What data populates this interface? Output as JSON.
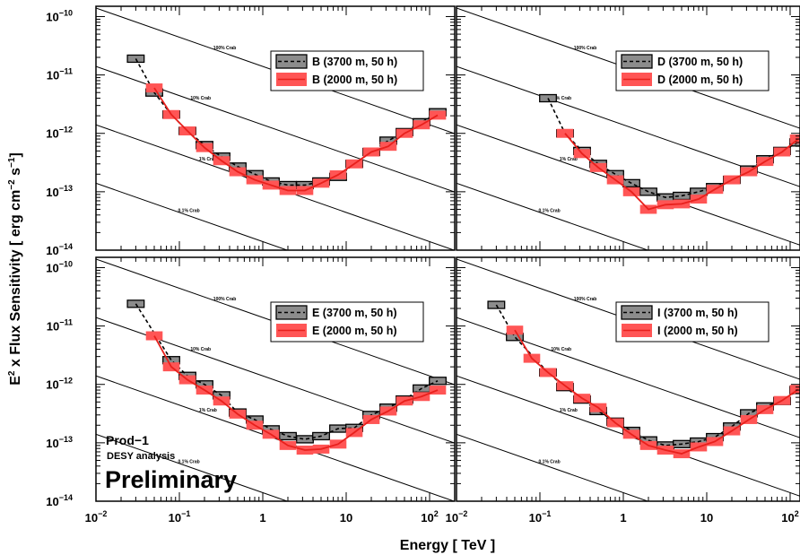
{
  "figure": {
    "ylabel_main": "E",
    "ylabel_sup": "2",
    "ylabel_rest": " x Flux Sensitivity [ erg cm",
    "ylabel_exp1": "−2",
    "ylabel_mid": " s",
    "ylabel_exp2": "−1",
    "ylabel_end": "]",
    "xlabel": "Energy [ TeV ]",
    "annotation_prod": "Prod−1",
    "annotation_analysis": "DESY analysis",
    "annotation_status": "Preliminary",
    "colors": {
      "high": "#8c8c8c",
      "low": "#ff5555",
      "low_line": "#e8201c"
    }
  },
  "chart_data": [
    {
      "type": "line",
      "panel": "top-left",
      "xlim": [
        0.01,
        200
      ],
      "ylim": [
        1e-14,
        1.5e-10
      ],
      "log_x": true,
      "log_y": true,
      "x_ticks": [
        {
          "v": 0.01,
          "base": "10",
          "exp": "−2"
        },
        {
          "v": 0.1,
          "base": "10",
          "exp": "−1"
        },
        {
          "v": 1,
          "base": "1",
          "exp": ""
        },
        {
          "v": 10,
          "base": "10",
          "exp": ""
        },
        {
          "v": 100,
          "base": "10",
          "exp": "2"
        }
      ],
      "y_ticks": [
        {
          "v": 1e-10,
          "base": "10",
          "exp": "−10"
        },
        {
          "v": 1e-11,
          "base": "10",
          "exp": "−11"
        },
        {
          "v": 1e-12,
          "base": "10",
          "exp": "−12"
        },
        {
          "v": 1e-13,
          "base": "10",
          "exp": "−13"
        },
        {
          "v": 1e-14,
          "base": "10",
          "exp": "−14"
        }
      ],
      "crab_labels": [
        "100% Crab",
        "10% Crab",
        "1% Crab",
        "0.1% Crab"
      ],
      "legend_placement": "top-right",
      "series": [
        {
          "name": "B (3700 m, 50 h)",
          "style": "high",
          "x": [
            0.03,
            0.05,
            0.08,
            0.125,
            0.2,
            0.32,
            0.5,
            0.8,
            1.25,
            2,
            3.2,
            5,
            8,
            12.5,
            20,
            32,
            50,
            80,
            125
          ],
          "y": [
            1.9e-11,
            5e-12,
            2.1e-12,
            1.1e-12,
            6.3e-13,
            4e-13,
            2.7e-13,
            2e-13,
            1.5e-13,
            1.3e-13,
            1.3e-13,
            1.5e-13,
            1.8e-13,
            3e-13,
            4.8e-13,
            7.5e-13,
            1.05e-12,
            1.55e-12,
            2.3e-12
          ]
        },
        {
          "name": "B (2000 m, 50 h)",
          "style": "low",
          "x": [
            0.05,
            0.08,
            0.125,
            0.2,
            0.32,
            0.5,
            0.8,
            1.25,
            2,
            3.2,
            5,
            8,
            12.5,
            20,
            32,
            50,
            80,
            125
          ],
          "y": [
            6e-12,
            2.1e-12,
            1.1e-12,
            5.7e-13,
            3.4e-13,
            2.2e-13,
            1.6e-13,
            1.3e-13,
            1.05e-13,
            1.05e-13,
            1.4e-13,
            1.95e-13,
            3e-13,
            4.8e-13,
            6e-13,
            1e-12,
            1.4e-12,
            2.05e-12
          ]
        }
      ]
    },
    {
      "type": "line",
      "panel": "top-right",
      "xlim": [
        0.01,
        200
      ],
      "ylim": [
        1e-14,
        1.5e-10
      ],
      "log_x": true,
      "log_y": true,
      "crab_labels": [
        "100% Crab",
        "10% Crab",
        "1% Crab",
        "0.1% Crab"
      ],
      "legend_placement": "top-right",
      "series": [
        {
          "name": "D (3700 m, 50 h)",
          "style": "high",
          "x": [
            0.125,
            0.2,
            0.32,
            0.5,
            0.8,
            1.25,
            2,
            3.2,
            5,
            8,
            12.5,
            20,
            32,
            50,
            80,
            125
          ],
          "y": [
            4e-12,
            1e-12,
            5e-13,
            3e-13,
            2e-13,
            1.4e-13,
            1e-13,
            8e-14,
            8.5e-14,
            1e-13,
            1.2e-13,
            1.6e-13,
            2.4e-13,
            3.6e-13,
            5e-13,
            7e-13
          ]
        },
        {
          "name": "D (2000 m, 50 h)",
          "style": "low",
          "x": [
            0.2,
            0.32,
            0.5,
            0.8,
            1.25,
            2,
            3.2,
            5,
            8,
            12.5,
            20,
            32,
            50,
            80,
            125
          ],
          "y": [
            1e-12,
            4.5e-13,
            2.6e-13,
            1.6e-13,
            1e-13,
            5e-14,
            6e-14,
            6.2e-14,
            7.5e-14,
            1.1e-13,
            1.6e-13,
            2.2e-13,
            3.3e-13,
            4.8e-13,
            8e-13
          ]
        }
      ]
    },
    {
      "type": "line",
      "panel": "bottom-left",
      "xlim": [
        0.01,
        200
      ],
      "ylim": [
        1e-14,
        1.5e-10
      ],
      "log_x": true,
      "log_y": true,
      "crab_labels": [
        "100% Crab",
        "10% Crab",
        "1% Crab",
        "0.1% Crab"
      ],
      "legend_placement": "top-right",
      "series": [
        {
          "name": "E (3700 m, 50 h)",
          "style": "high",
          "x": [
            0.03,
            0.08,
            0.125,
            0.2,
            0.32,
            0.5,
            0.8,
            1.25,
            2,
            3.2,
            5,
            8,
            12.5,
            20,
            32,
            50,
            80,
            125
          ],
          "y": [
            2.4e-11,
            2.6e-12,
            1.4e-12,
            1e-12,
            6.5e-13,
            3.3e-13,
            2.5e-13,
            1.7e-13,
            1.3e-13,
            1.15e-13,
            1.3e-13,
            1.75e-13,
            1.8e-13,
            3e-13,
            4e-13,
            5.5e-13,
            8.5e-13,
            1.15e-12
          ]
        },
        {
          "name": "E (2000 m, 50 h)",
          "style": "low",
          "x": [
            0.05,
            0.08,
            0.125,
            0.2,
            0.32,
            0.5,
            0.8,
            1.25,
            2,
            3.2,
            5,
            8,
            12.5,
            20,
            32,
            50,
            80,
            125
          ],
          "y": [
            6.8e-12,
            2e-12,
            1.2e-12,
            8e-13,
            5.2e-13,
            3.1e-13,
            2e-13,
            1.4e-13,
            9e-14,
            7.5e-14,
            7.8e-14,
            9.5e-14,
            1.5e-13,
            2.5e-13,
            3.5e-13,
            5.2e-13,
            6.2e-13,
            8e-13
          ]
        }
      ]
    },
    {
      "type": "line",
      "panel": "bottom-right",
      "xlim": [
        0.01,
        200
      ],
      "ylim": [
        1e-14,
        1.5e-10
      ],
      "log_x": true,
      "log_y": true,
      "crab_labels": [
        "100% Crab",
        "10% Crab",
        "1% Crab",
        "0.1% Crab"
      ],
      "legend_placement": "top-right",
      "series": [
        {
          "name": "I (3700 m, 50 h)",
          "style": "high",
          "x": [
            0.03,
            0.05,
            0.125,
            0.2,
            0.32,
            0.5,
            0.8,
            1.25,
            2,
            3.2,
            5,
            8,
            12.5,
            20,
            32,
            50,
            80,
            125
          ],
          "y": [
            2.3e-11,
            6.5e-12,
            1.6e-12,
            9e-13,
            5.5e-13,
            3.5e-13,
            2.3e-13,
            1.6e-13,
            1.1e-13,
            9e-14,
            9.5e-14,
            1.05e-13,
            1.25e-13,
            1.9e-13,
            3.2e-13,
            4.2e-13,
            5.2e-13,
            8e-13
          ]
        },
        {
          "name": "I (2000 m, 50 h)",
          "style": "low",
          "x": [
            0.05,
            0.08,
            0.125,
            0.2,
            0.32,
            0.5,
            0.8,
            1.25,
            2,
            3.2,
            5,
            8,
            12.5,
            20,
            32,
            50,
            80,
            125
          ],
          "y": [
            8.5e-12,
            2.8e-12,
            1.6e-12,
            9.5e-13,
            5.8e-13,
            4e-13,
            2.2e-13,
            1.4e-13,
            9e-14,
            7.5e-14,
            6.5e-14,
            8.5e-14,
            1.05e-13,
            1.6e-13,
            2.5e-13,
            3.7e-13,
            5.3e-13,
            8.2e-13
          ]
        }
      ]
    }
  ]
}
